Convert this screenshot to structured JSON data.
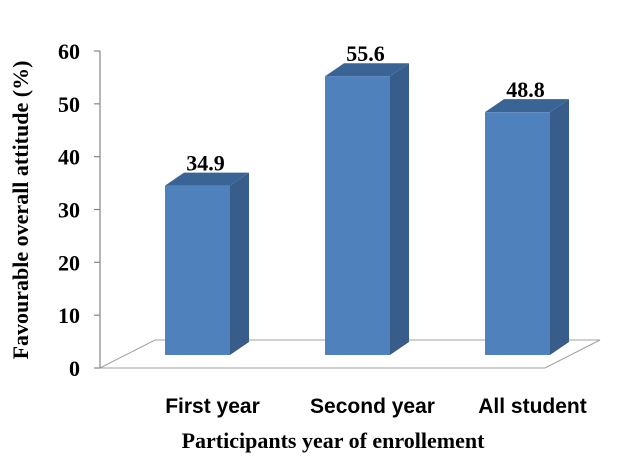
{
  "chart_data": {
    "type": "bar",
    "categories": [
      "First year",
      "Second year",
      "All student"
    ],
    "values": [
      34.9,
      55.6,
      48.8
    ],
    "data_labels": [
      "34.9",
      "55.6",
      "48.8"
    ],
    "title": "",
    "xlabel": "Participants year of enrollement",
    "ylabel": "Favourable overall attitude (%)",
    "ylim": [
      0,
      60
    ],
    "yticks": [
      "0",
      "10",
      "20",
      "30",
      "40",
      "50",
      "60"
    ],
    "grid": false,
    "legend": "none",
    "style": "3d-column",
    "colors": {
      "front": "#4F81BD",
      "side": "#385D8A",
      "top": "#3A6396",
      "floor_stroke": "#A0A0A0",
      "axis": "#868686"
    }
  }
}
